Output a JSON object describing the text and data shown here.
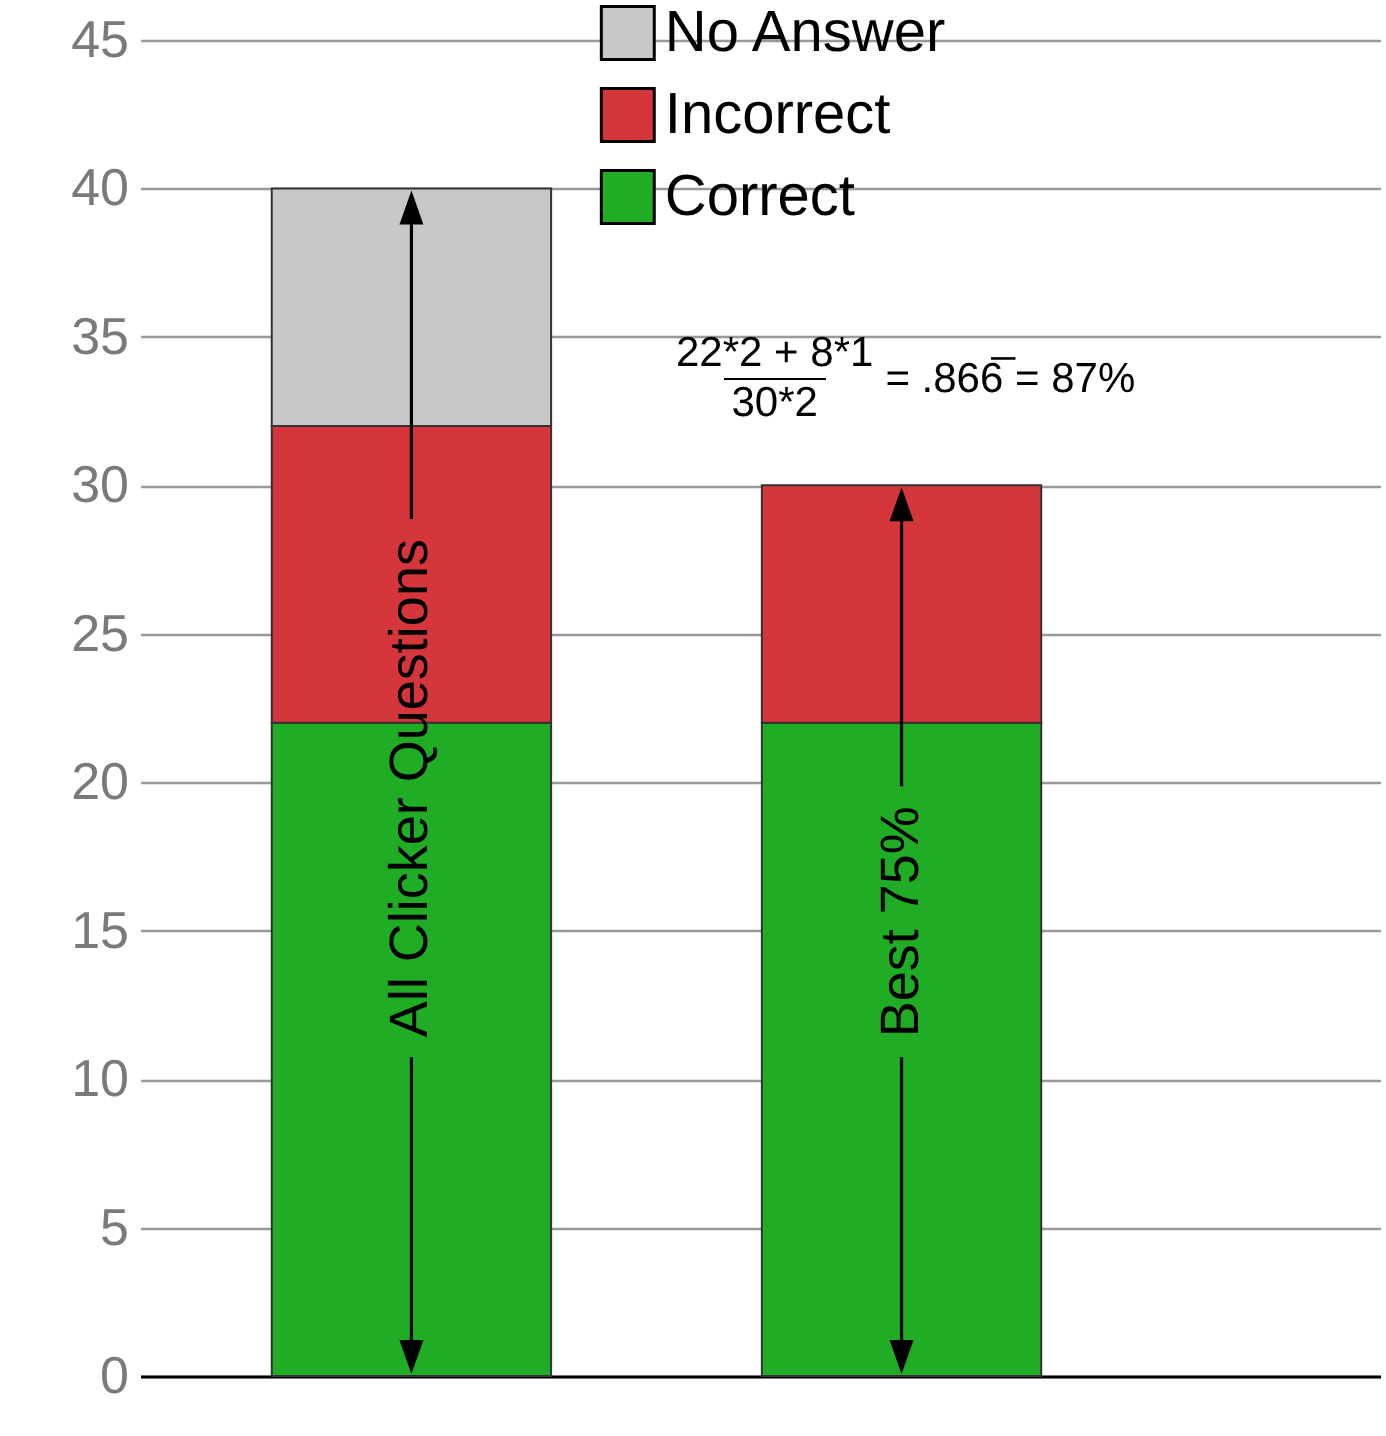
{
  "chart_data": {
    "type": "bar",
    "stacked": true,
    "categories": [
      null,
      null
    ],
    "series": [
      {
        "name": "Correct",
        "color": "#20ac24",
        "values": [
          22,
          22
        ]
      },
      {
        "name": "Incorrect",
        "color": "#d5363c",
        "values": [
          10,
          8
        ]
      },
      {
        "name": "No Answer",
        "color": "#c8c8c8",
        "values": [
          8,
          null
        ]
      }
    ],
    "ylim": [
      0,
      45
    ],
    "yticks": [
      0,
      5,
      10,
      15,
      20,
      25,
      30,
      35,
      40,
      45
    ],
    "grid": "y",
    "legend": "top",
    "tick_labels": "y",
    "annotations": [
      "All Clicker Questions",
      "Best 75%",
      "22*2 + 8*1",
      "30*2",
      "= .866̅ = 87%"
    ]
  }
}
